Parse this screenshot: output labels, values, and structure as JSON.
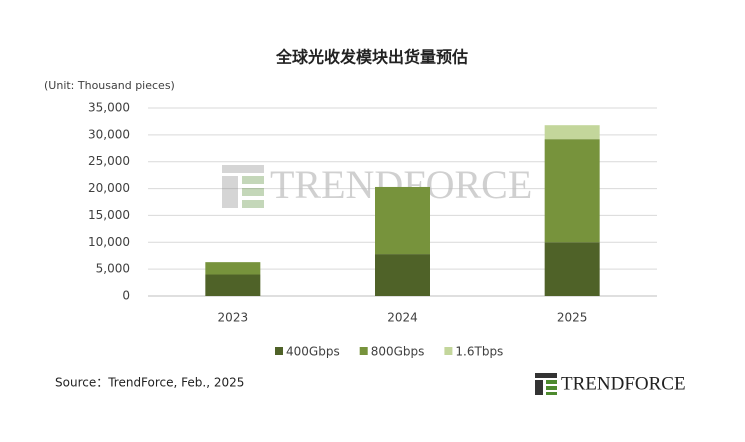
{
  "chart_data": {
    "type": "stacked-bar",
    "title": "全球光收发模块出货量预估",
    "unit_label": "(Unit: Thousand pieces)",
    "categories": [
      "2023",
      "2024",
      "2025"
    ],
    "series": [
      {
        "name": "400Gbps",
        "color": "#4f6228",
        "values": [
          4000,
          7800,
          10000
        ]
      },
      {
        "name": "800Gbps",
        "color": "#77933c",
        "values": [
          2300,
          12500,
          19200
        ]
      },
      {
        "name": "1.6Tbps",
        "color": "#c3d69b",
        "values": [
          0,
          0,
          2600
        ]
      }
    ],
    "ylim": [
      0,
      35000
    ],
    "yticks": [
      0,
      {
        "value": 5000,
        "label": "5,000"
      },
      {
        "value": 10000,
        "label": "10,000"
      },
      {
        "value": 15000,
        "label": "15,000"
      },
      {
        "value": 20000,
        "label": "20,000"
      },
      {
        "value": 25000,
        "label": "25,000"
      },
      {
        "value": 30000,
        "label": "30,000"
      },
      {
        "value": 35000,
        "label": "35,000"
      }
    ],
    "grid": true,
    "legend": "bottom",
    "source": "Source：TrendForce, Feb., 2025",
    "watermark": "TRENDFORCE",
    "logo": "TRENDFORCE"
  }
}
